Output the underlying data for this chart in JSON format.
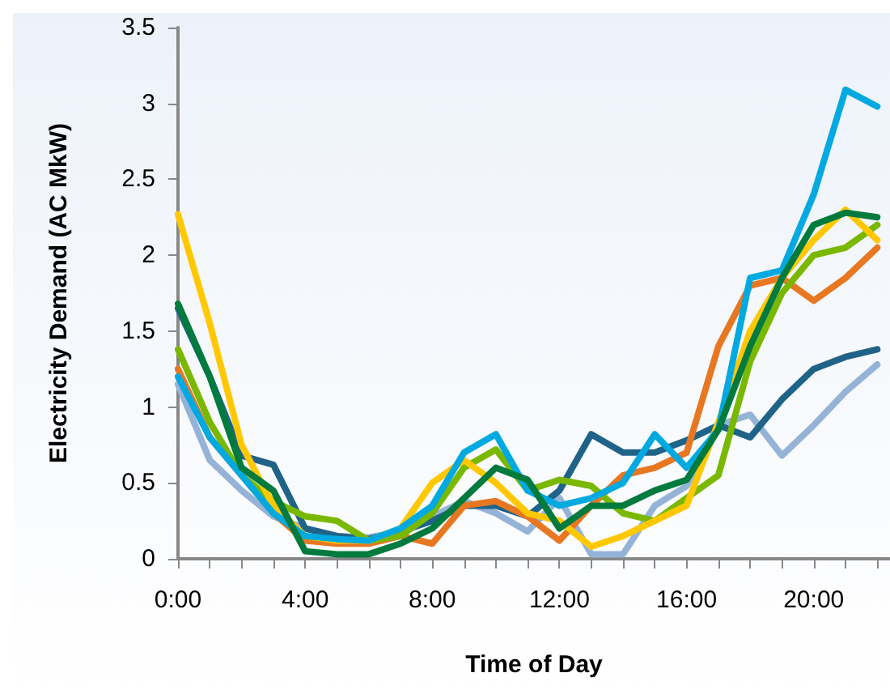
{
  "chart_data": {
    "type": "line",
    "xlabel": "Time of Day",
    "ylabel": "Electricity Demand (AC MkW)",
    "x": [
      0,
      1,
      2,
      3,
      4,
      5,
      6,
      7,
      8,
      9,
      10,
      11,
      12,
      13,
      14,
      15,
      16,
      17,
      18,
      19,
      20,
      21,
      22
    ],
    "xlim": [
      0,
      22.4
    ],
    "xticks": [
      {
        "value": 0,
        "label": "0:00"
      },
      {
        "value": 1,
        "label": null
      },
      {
        "value": 2,
        "label": null
      },
      {
        "value": 3,
        "label": null
      },
      {
        "value": 4,
        "label": "4:00"
      },
      {
        "value": 5,
        "label": null
      },
      {
        "value": 6,
        "label": null
      },
      {
        "value": 7,
        "label": null
      },
      {
        "value": 8,
        "label": "8:00"
      },
      {
        "value": 9,
        "label": null
      },
      {
        "value": 10,
        "label": null
      },
      {
        "value": 11,
        "label": null
      },
      {
        "value": 12,
        "label": "12:00"
      },
      {
        "value": 13,
        "label": null
      },
      {
        "value": 14,
        "label": null
      },
      {
        "value": 15,
        "label": null
      },
      {
        "value": 16,
        "label": "16:00"
      },
      {
        "value": 17,
        "label": null
      },
      {
        "value": 18,
        "label": null
      },
      {
        "value": 19,
        "label": null
      },
      {
        "value": 20,
        "label": "20:00"
      },
      {
        "value": 21,
        "label": null
      },
      {
        "value": 22,
        "label": null
      }
    ],
    "ylim": [
      0,
      3.5
    ],
    "yticks": [
      0,
      0.5,
      1,
      1.5,
      2,
      2.5,
      3,
      3.5
    ],
    "marker": "none",
    "line_style": "solid",
    "series": [
      {
        "color": "#95b3d7",
        "values": [
          1.15,
          0.65,
          0.45,
          0.28,
          0.2,
          0.15,
          0.14,
          0.18,
          0.28,
          0.38,
          0.3,
          0.18,
          0.4,
          0.03,
          0.03,
          0.35,
          0.48,
          0.88,
          0.95,
          0.68,
          0.88,
          1.1,
          1.28
        ]
      },
      {
        "color": "#1f6388",
        "values": [
          1.65,
          1.2,
          0.68,
          0.62,
          0.2,
          0.15,
          0.13,
          0.18,
          0.25,
          0.35,
          0.35,
          0.28,
          0.45,
          0.82,
          0.7,
          0.7,
          0.78,
          0.88,
          0.8,
          1.05,
          1.25,
          1.33,
          1.38
        ]
      },
      {
        "color": "#e87722",
        "values": [
          1.25,
          0.8,
          0.55,
          0.3,
          0.12,
          0.1,
          0.1,
          0.15,
          0.1,
          0.35,
          0.38,
          0.28,
          0.12,
          0.35,
          0.55,
          0.6,
          0.7,
          1.4,
          1.8,
          1.85,
          1.7,
          1.85,
          2.05
        ]
      },
      {
        "color": "#7ab800",
        "values": [
          1.38,
          0.9,
          0.55,
          0.38,
          0.28,
          0.25,
          0.12,
          0.15,
          0.3,
          0.6,
          0.72,
          0.45,
          0.52,
          0.48,
          0.3,
          0.25,
          0.4,
          0.55,
          1.3,
          1.75,
          2.0,
          2.05,
          2.2
        ]
      },
      {
        "color": "#ffc800",
        "values": [
          2.27,
          1.55,
          0.75,
          0.35,
          0.15,
          0.12,
          0.12,
          0.2,
          0.5,
          0.65,
          0.5,
          0.3,
          0.25,
          0.08,
          0.15,
          0.25,
          0.35,
          0.9,
          1.5,
          1.85,
          2.1,
          2.3,
          2.1
        ]
      },
      {
        "color": "#00a9e0",
        "values": [
          1.2,
          0.8,
          0.55,
          0.3,
          0.15,
          0.13,
          0.12,
          0.2,
          0.35,
          0.7,
          0.82,
          0.45,
          0.35,
          0.4,
          0.5,
          0.82,
          0.6,
          0.85,
          1.85,
          1.9,
          2.4,
          3.09,
          2.98
        ]
      },
      {
        "color": "#007a3d",
        "values": [
          1.68,
          1.2,
          0.6,
          0.45,
          0.05,
          0.03,
          0.03,
          0.1,
          0.2,
          0.4,
          0.6,
          0.52,
          0.2,
          0.35,
          0.35,
          0.45,
          0.52,
          0.85,
          1.4,
          1.85,
          2.2,
          2.28,
          2.25
        ]
      }
    ]
  }
}
